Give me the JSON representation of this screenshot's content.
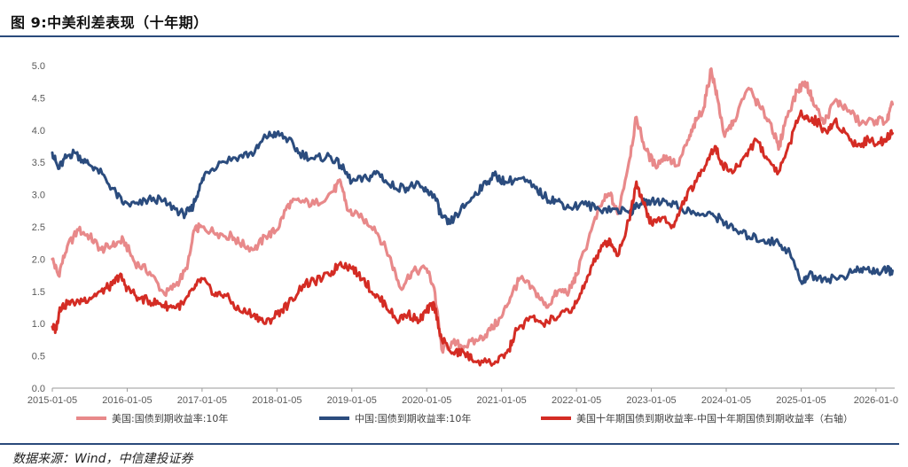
{
  "title": "图 9:中美利差表现（十年期）",
  "source": "数据来源：Wind，中信建投证券",
  "chart_data": {
    "type": "line",
    "title": "图 9:中美利差表现（十年期）",
    "xlabel": "",
    "ylabel": "",
    "ylim": [
      0,
      5
    ],
    "yticks": [
      "0.0",
      "0.5",
      "1.0",
      "1.5",
      "2.0",
      "2.5",
      "3.0",
      "3.5",
      "4.0",
      "4.5",
      "5.0"
    ],
    "x_range": [
      2015.0,
      2026.25
    ],
    "xticks": [
      {
        "label": "2015-01-05",
        "t": 2015.0
      },
      {
        "label": "2016-01-05",
        "t": 2016.0
      },
      {
        "label": "2017-01-05",
        "t": 2017.0
      },
      {
        "label": "2018-01-05",
        "t": 2018.0
      },
      {
        "label": "2019-01-05",
        "t": 2019.0
      },
      {
        "label": "2020-01-05",
        "t": 2020.0
      },
      {
        "label": "2021-01-05",
        "t": 2021.0
      },
      {
        "label": "2022-01-05",
        "t": 2022.0
      },
      {
        "label": "2023-01-05",
        "t": 2023.0
      },
      {
        "label": "2024-01-05",
        "t": 2024.0
      },
      {
        "label": "2025-01-05",
        "t": 2025.0
      },
      {
        "label": "2026-01-0",
        "t": 2026.0
      }
    ],
    "series": [
      {
        "name": "美国:国债到期收益率:10年",
        "color": "#e8898a",
        "points": [
          [
            2015.0,
            2.0
          ],
          [
            2015.08,
            1.75
          ],
          [
            2015.2,
            2.2
          ],
          [
            2015.35,
            2.45
          ],
          [
            2015.5,
            2.35
          ],
          [
            2015.65,
            2.15
          ],
          [
            2015.8,
            2.2
          ],
          [
            2015.95,
            2.3
          ],
          [
            2016.1,
            1.95
          ],
          [
            2016.3,
            1.8
          ],
          [
            2016.5,
            1.45
          ],
          [
            2016.65,
            1.6
          ],
          [
            2016.8,
            1.85
          ],
          [
            2016.9,
            2.45
          ],
          [
            2017.0,
            2.5
          ],
          [
            2017.2,
            2.4
          ],
          [
            2017.4,
            2.35
          ],
          [
            2017.5,
            2.25
          ],
          [
            2017.7,
            2.15
          ],
          [
            2017.85,
            2.35
          ],
          [
            2018.0,
            2.45
          ],
          [
            2018.15,
            2.85
          ],
          [
            2018.3,
            2.9
          ],
          [
            2018.5,
            2.85
          ],
          [
            2018.75,
            3.05
          ],
          [
            2018.85,
            3.2
          ],
          [
            2018.95,
            2.75
          ],
          [
            2019.1,
            2.65
          ],
          [
            2019.3,
            2.5
          ],
          [
            2019.5,
            2.05
          ],
          [
            2019.65,
            1.55
          ],
          [
            2019.8,
            1.8
          ],
          [
            2020.0,
            1.85
          ],
          [
            2020.1,
            1.55
          ],
          [
            2020.2,
            0.6
          ],
          [
            2020.35,
            0.7
          ],
          [
            2020.5,
            0.65
          ],
          [
            2020.7,
            0.75
          ],
          [
            2020.85,
            0.9
          ],
          [
            2021.0,
            1.1
          ],
          [
            2021.15,
            1.5
          ],
          [
            2021.25,
            1.7
          ],
          [
            2021.45,
            1.5
          ],
          [
            2021.6,
            1.25
          ],
          [
            2021.75,
            1.5
          ],
          [
            2021.9,
            1.5
          ],
          [
            2022.0,
            1.75
          ],
          [
            2022.2,
            2.45
          ],
          [
            2022.35,
            2.9
          ],
          [
            2022.45,
            3.0
          ],
          [
            2022.55,
            2.7
          ],
          [
            2022.7,
            3.5
          ],
          [
            2022.8,
            4.2
          ],
          [
            2022.92,
            3.7
          ],
          [
            2023.05,
            3.45
          ],
          [
            2023.2,
            3.6
          ],
          [
            2023.35,
            3.45
          ],
          [
            2023.5,
            3.85
          ],
          [
            2023.6,
            4.15
          ],
          [
            2023.7,
            4.35
          ],
          [
            2023.8,
            4.95
          ],
          [
            2023.88,
            4.5
          ],
          [
            2023.98,
            3.9
          ],
          [
            2024.1,
            4.15
          ],
          [
            2024.3,
            4.65
          ],
          [
            2024.45,
            4.35
          ],
          [
            2024.6,
            4.1
          ],
          [
            2024.7,
            3.7
          ],
          [
            2024.8,
            4.2
          ],
          [
            2024.95,
            4.6
          ],
          [
            2025.05,
            4.75
          ],
          [
            2025.15,
            4.5
          ],
          [
            2025.3,
            4.1
          ],
          [
            2025.45,
            4.45
          ],
          [
            2025.6,
            4.35
          ],
          [
            2025.8,
            4.1
          ],
          [
            2026.0,
            4.15
          ],
          [
            2026.15,
            4.15
          ],
          [
            2026.22,
            4.4
          ]
        ]
      },
      {
        "name": "中国:国债到期收益率:10年",
        "color": "#2b4c7e",
        "points": [
          [
            2015.0,
            3.65
          ],
          [
            2015.08,
            3.4
          ],
          [
            2015.2,
            3.6
          ],
          [
            2015.3,
            3.65
          ],
          [
            2015.45,
            3.5
          ],
          [
            2015.6,
            3.4
          ],
          [
            2015.8,
            3.1
          ],
          [
            2015.95,
            2.85
          ],
          [
            2016.15,
            2.85
          ],
          [
            2016.35,
            2.95
          ],
          [
            2016.55,
            2.85
          ],
          [
            2016.75,
            2.7
          ],
          [
            2016.85,
            2.75
          ],
          [
            2016.95,
            3.05
          ],
          [
            2017.05,
            3.35
          ],
          [
            2017.25,
            3.5
          ],
          [
            2017.5,
            3.6
          ],
          [
            2017.7,
            3.65
          ],
          [
            2017.85,
            3.9
          ],
          [
            2018.0,
            3.95
          ],
          [
            2018.15,
            3.85
          ],
          [
            2018.3,
            3.65
          ],
          [
            2018.5,
            3.55
          ],
          [
            2018.7,
            3.6
          ],
          [
            2018.85,
            3.45
          ],
          [
            2019.0,
            3.2
          ],
          [
            2019.2,
            3.25
          ],
          [
            2019.35,
            3.35
          ],
          [
            2019.5,
            3.15
          ],
          [
            2019.7,
            3.1
          ],
          [
            2019.85,
            3.15
          ],
          [
            2020.0,
            3.05
          ],
          [
            2020.1,
            3.0
          ],
          [
            2020.2,
            2.65
          ],
          [
            2020.3,
            2.55
          ],
          [
            2020.45,
            2.75
          ],
          [
            2020.6,
            2.95
          ],
          [
            2020.75,
            3.15
          ],
          [
            2020.9,
            3.3
          ],
          [
            2021.05,
            3.2
          ],
          [
            2021.25,
            3.25
          ],
          [
            2021.45,
            3.1
          ],
          [
            2021.6,
            2.95
          ],
          [
            2021.75,
            2.9
          ],
          [
            2021.9,
            2.8
          ],
          [
            2022.1,
            2.85
          ],
          [
            2022.3,
            2.78
          ],
          [
            2022.5,
            2.78
          ],
          [
            2022.7,
            2.72
          ],
          [
            2022.85,
            2.85
          ],
          [
            2023.0,
            2.9
          ],
          [
            2023.2,
            2.9
          ],
          [
            2023.4,
            2.8
          ],
          [
            2023.6,
            2.68
          ],
          [
            2023.8,
            2.7
          ],
          [
            2023.95,
            2.6
          ],
          [
            2024.1,
            2.45
          ],
          [
            2024.3,
            2.35
          ],
          [
            2024.5,
            2.3
          ],
          [
            2024.7,
            2.25
          ],
          [
            2024.85,
            2.1
          ],
          [
            2025.0,
            1.65
          ],
          [
            2025.1,
            1.75
          ],
          [
            2025.3,
            1.7
          ],
          [
            2025.5,
            1.7
          ],
          [
            2025.7,
            1.8
          ],
          [
            2025.85,
            1.85
          ],
          [
            2026.0,
            1.8
          ],
          [
            2026.15,
            1.82
          ],
          [
            2026.22,
            1.82
          ]
        ]
      },
      {
        "name": "美国十年期国债到期收益率-中国十年期国债到期收益率（右轴）",
        "color": "#d42c24",
        "points": [
          [
            2015.0,
            0.95
          ],
          [
            2015.05,
            0.9
          ],
          [
            2015.1,
            1.25
          ],
          [
            2015.2,
            1.3
          ],
          [
            2015.35,
            1.35
          ],
          [
            2015.5,
            1.4
          ],
          [
            2015.65,
            1.5
          ],
          [
            2015.8,
            1.6
          ],
          [
            2015.9,
            1.75
          ],
          [
            2016.0,
            1.55
          ],
          [
            2016.15,
            1.4
          ],
          [
            2016.3,
            1.35
          ],
          [
            2016.45,
            1.3
          ],
          [
            2016.6,
            1.25
          ],
          [
            2016.75,
            1.3
          ],
          [
            2016.9,
            1.55
          ],
          [
            2017.0,
            1.7
          ],
          [
            2017.15,
            1.45
          ],
          [
            2017.3,
            1.45
          ],
          [
            2017.5,
            1.2
          ],
          [
            2017.7,
            1.15
          ],
          [
            2017.85,
            1.0
          ],
          [
            2018.0,
            1.15
          ],
          [
            2018.15,
            1.3
          ],
          [
            2018.35,
            1.6
          ],
          [
            2018.5,
            1.65
          ],
          [
            2018.7,
            1.75
          ],
          [
            2018.85,
            1.95
          ],
          [
            2019.0,
            1.85
          ],
          [
            2019.15,
            1.7
          ],
          [
            2019.3,
            1.45
          ],
          [
            2019.45,
            1.3
          ],
          [
            2019.6,
            1.05
          ],
          [
            2019.75,
            1.15
          ],
          [
            2019.9,
            1.05
          ],
          [
            2020.0,
            1.2
          ],
          [
            2020.1,
            1.3
          ],
          [
            2020.2,
            0.75
          ],
          [
            2020.35,
            0.55
          ],
          [
            2020.5,
            0.55
          ],
          [
            2020.6,
            0.45
          ],
          [
            2020.8,
            0.4
          ],
          [
            2020.95,
            0.4
          ],
          [
            2021.1,
            0.6
          ],
          [
            2021.2,
            0.9
          ],
          [
            2021.4,
            1.1
          ],
          [
            2021.55,
            1.0
          ],
          [
            2021.75,
            1.1
          ],
          [
            2021.95,
            1.25
          ],
          [
            2022.1,
            1.55
          ],
          [
            2022.2,
            1.9
          ],
          [
            2022.35,
            2.2
          ],
          [
            2022.45,
            2.3
          ],
          [
            2022.55,
            2.05
          ],
          [
            2022.7,
            2.6
          ],
          [
            2022.8,
            3.2
          ],
          [
            2022.9,
            2.85
          ],
          [
            2023.0,
            2.55
          ],
          [
            2023.15,
            2.65
          ],
          [
            2023.3,
            2.5
          ],
          [
            2023.45,
            2.95
          ],
          [
            2023.6,
            3.2
          ],
          [
            2023.75,
            3.55
          ],
          [
            2023.85,
            3.75
          ],
          [
            2023.95,
            3.45
          ],
          [
            2024.1,
            3.35
          ],
          [
            2024.25,
            3.6
          ],
          [
            2024.4,
            3.85
          ],
          [
            2024.55,
            3.55
          ],
          [
            2024.7,
            3.35
          ],
          [
            2024.85,
            3.8
          ],
          [
            2025.0,
            4.3
          ],
          [
            2025.1,
            4.15
          ],
          [
            2025.2,
            4.15
          ],
          [
            2025.35,
            3.95
          ],
          [
            2025.45,
            4.15
          ],
          [
            2025.6,
            3.95
          ],
          [
            2025.75,
            3.75
          ],
          [
            2025.9,
            3.85
          ],
          [
            2026.05,
            3.8
          ],
          [
            2026.15,
            3.9
          ],
          [
            2026.22,
            3.95
          ]
        ]
      }
    ],
    "legend": [
      {
        "label": "美国:国债到期收益率:10年",
        "color": "#e8898a"
      },
      {
        "label": "中国:国债到期收益率:10年",
        "color": "#2b4c7e"
      },
      {
        "label": "美国十年期国债到期收益率-中国十年期国债到期收益率（右轴）",
        "color": "#d42c24"
      }
    ]
  }
}
